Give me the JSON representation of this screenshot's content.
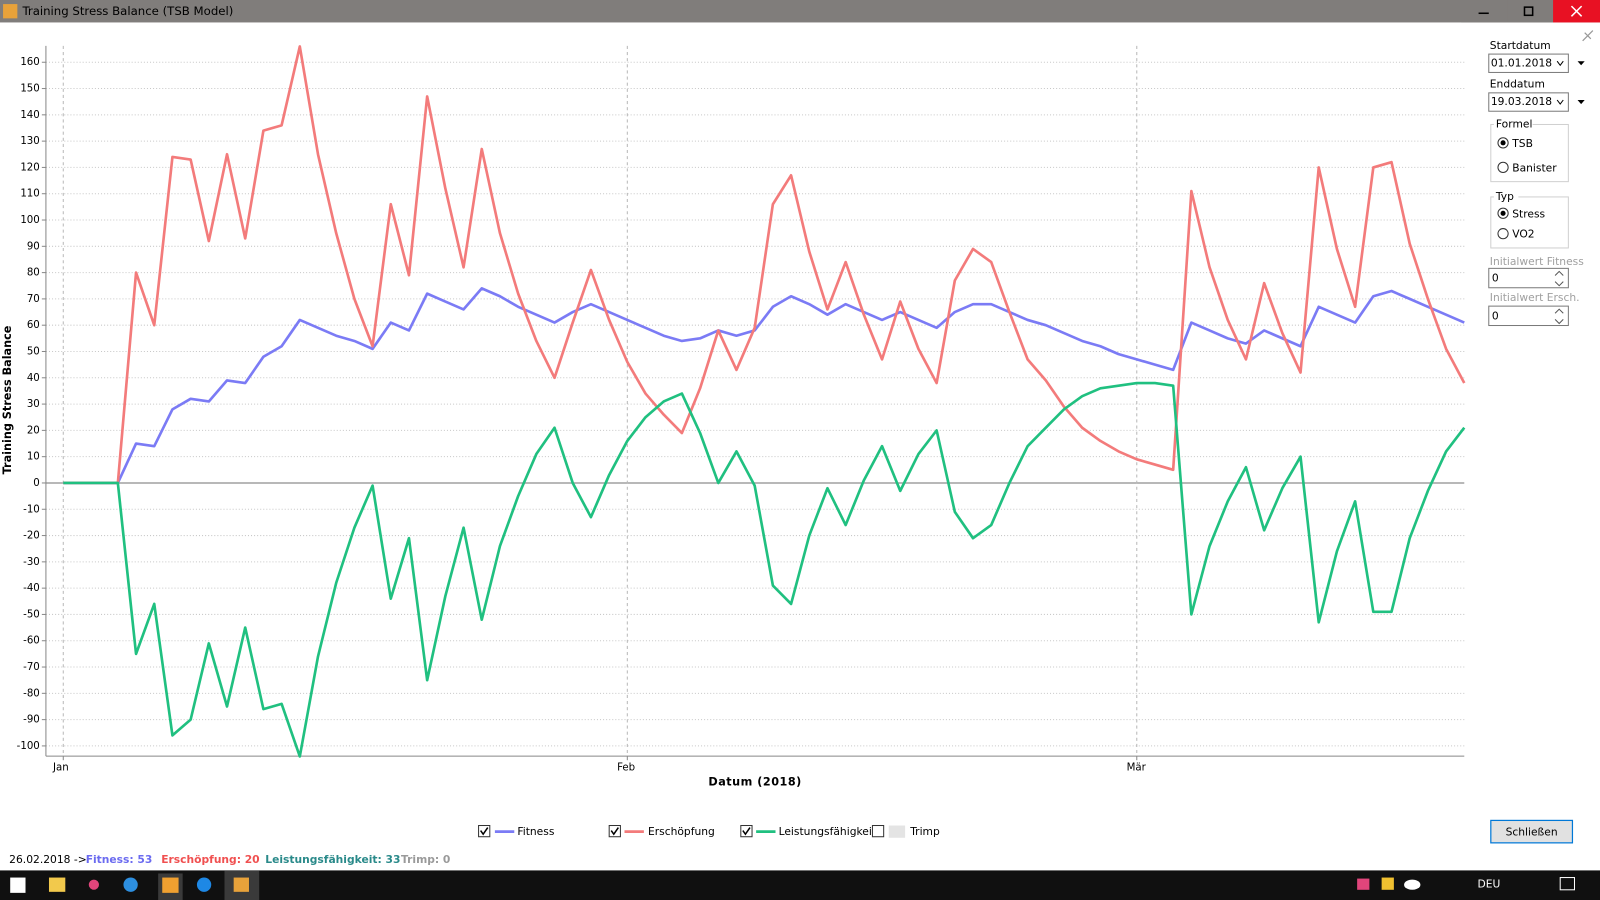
{
  "window_title": "Training Stress Balance (TSB Model)",
  "chart_data": {
    "type": "line",
    "ylabel": "Training Stress Balance",
    "xlabel": "Datum (2018)",
    "categories": [
      "Jan",
      null,
      null,
      null,
      null,
      null,
      null,
      null,
      null,
      null,
      null,
      null,
      null,
      null,
      null,
      null,
      null,
      null,
      null,
      null,
      null,
      null,
      null,
      null,
      null,
      null,
      null,
      null,
      null,
      null,
      null,
      "Feb",
      null,
      null,
      null,
      null,
      null,
      null,
      null,
      null,
      null,
      null,
      null,
      null,
      null,
      null,
      null,
      null,
      null,
      null,
      null,
      null,
      null,
      null,
      null,
      null,
      null,
      null,
      null,
      "Mär",
      null,
      null,
      null,
      null,
      null,
      null,
      null,
      null,
      null,
      null,
      null,
      null,
      null,
      null,
      null,
      null,
      null,
      null
    ],
    "series": [
      {
        "name": "Fitness",
        "color": "#7b7bf5",
        "checked": true,
        "values": [
          0,
          0,
          0,
          0,
          15,
          14,
          28,
          32,
          31,
          39,
          38,
          48,
          52,
          62,
          59,
          56,
          54,
          51,
          61,
          58,
          72,
          69,
          66,
          74,
          71,
          67,
          64,
          61,
          65,
          68,
          65,
          62,
          59,
          56,
          54,
          55,
          58,
          56,
          58,
          67,
          71,
          68,
          64,
          68,
          65,
          62,
          65,
          62,
          59,
          65,
          68,
          68,
          65,
          62,
          60,
          57,
          54,
          52,
          49,
          47,
          45,
          43,
          61,
          58,
          55,
          53,
          58,
          55,
          52,
          67,
          64,
          61,
          71,
          73,
          70,
          67,
          64,
          61
        ]
      },
      {
        "name": "Erschöpfung",
        "color": "#f37b7b",
        "checked": true,
        "values": [
          0,
          0,
          0,
          0,
          80,
          60,
          124,
          123,
          92,
          125,
          93,
          134,
          136,
          166,
          125,
          95,
          70,
          52,
          106,
          79,
          147,
          112,
          82,
          127,
          95,
          72,
          54,
          40,
          61,
          81,
          62,
          46,
          34,
          26,
          19,
          36,
          58,
          43,
          59,
          106,
          117,
          88,
          66,
          84,
          64,
          47,
          69,
          51,
          38,
          77,
          89,
          84,
          65,
          47,
          39,
          29,
          21,
          16,
          12,
          9,
          7,
          5,
          111,
          82,
          62,
          47,
          76,
          57,
          42,
          120,
          89,
          67,
          120,
          122,
          91,
          70,
          51,
          38
        ]
      },
      {
        "name": "Leistungsfähigkeit",
        "color": "#20c080",
        "checked": true,
        "values": [
          0,
          0,
          0,
          0,
          -65,
          -46,
          -96,
          -90,
          -61,
          -85,
          -55,
          -86,
          -84,
          -104,
          -66,
          -38,
          -17,
          -1,
          -44,
          -21,
          -75,
          -43,
          -17,
          -52,
          -24,
          -5,
          11,
          21,
          0,
          -13,
          3,
          16,
          25,
          31,
          34,
          19,
          0,
          12,
          -1,
          -39,
          -46,
          -20,
          -2,
          -16,
          1,
          14,
          -3,
          11,
          20,
          -11,
          -21,
          -16,
          0,
          14,
          21,
          28,
          33,
          36,
          37,
          38,
          38,
          37,
          -50,
          -24,
          -7,
          6,
          -18,
          -2,
          10,
          -53,
          -26,
          -7,
          -49,
          -49,
          -21,
          -3,
          12,
          21
        ]
      }
    ],
    "hidden_series": [
      {
        "name": "Trimp",
        "color": "#e4e4e4",
        "checked": false
      }
    ],
    "ylim": [
      -100,
      160
    ],
    "yticks": [
      -100,
      -90,
      -80,
      -70,
      -60,
      -50,
      -40,
      -30,
      -20,
      -10,
      0,
      10,
      20,
      30,
      40,
      50,
      60,
      70,
      80,
      90,
      100,
      110,
      120,
      130,
      140,
      150,
      160
    ],
    "grid": true
  },
  "sidebar": {
    "start_label": "Startdatum",
    "start_value": "01.01.2018",
    "end_label": "Enddatum",
    "end_value": "19.03.2018",
    "formula_label": "Formel",
    "formula_options": [
      "TSB",
      "Banister"
    ],
    "type_label": "Typ",
    "type_options": [
      "Stress",
      "VO2"
    ],
    "init_fitness_label": "Initialwert Fitness",
    "init_fitness_value": "0",
    "init_fatigue_label": "Initialwert Ersch.",
    "init_fatigue_value": "0",
    "close_button": "Schließen"
  },
  "status": {
    "date": "26.02.2018 ->",
    "fitness": "Fitness: 53",
    "fatigue": "Erschöpfung: 20",
    "performance": "Leistungsfähigkeit: 33",
    "trimp": "Trimp: 0"
  },
  "taskbar": {
    "language": "DEU"
  }
}
